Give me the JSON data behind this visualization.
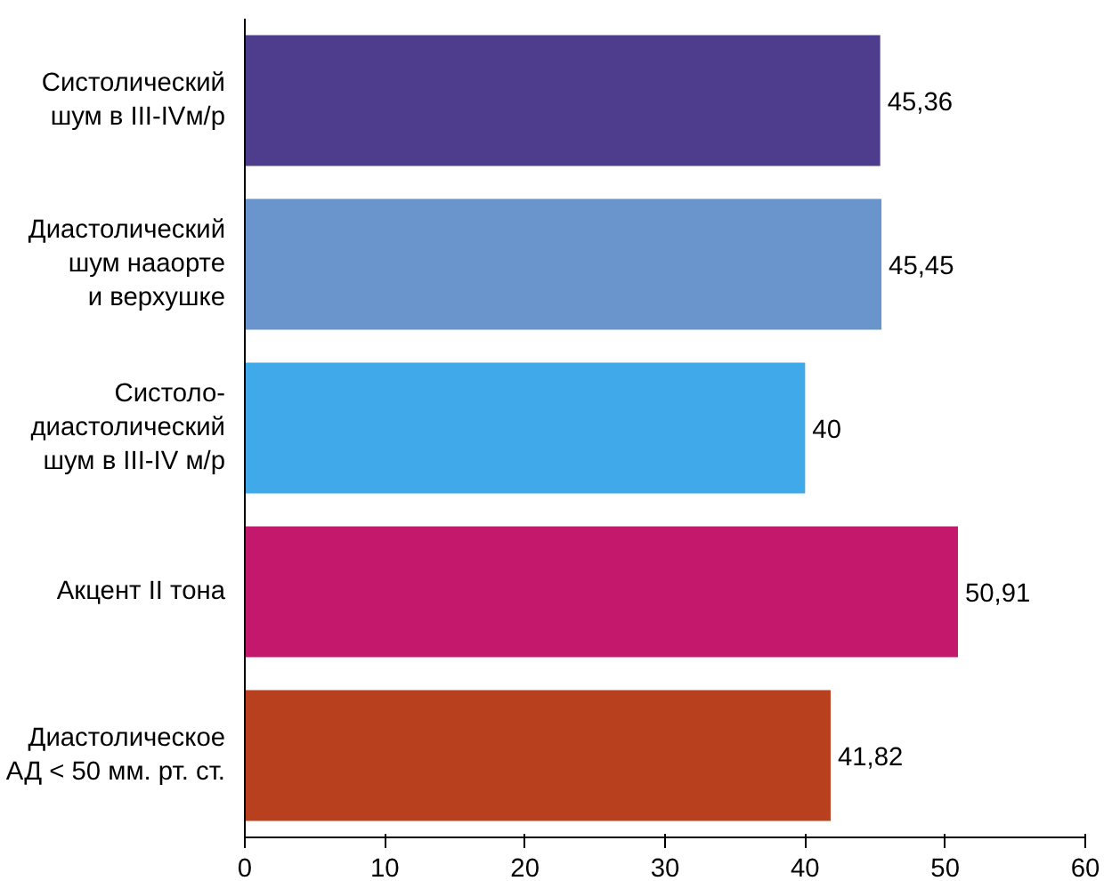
{
  "chart_data": {
    "type": "bar",
    "orientation": "horizontal",
    "categories": [
      "Систолический\nшум в III-IVм/р",
      "Диастолический\nшум нааорте\nи верхушке",
      "Систоло-\nдиастолический\nшум в III-IV м/р",
      "Акцент II тона",
      "Диастолическое\nАД < 50 мм. рт. ст."
    ],
    "values": [
      45.36,
      45.45,
      40,
      50.91,
      41.82
    ],
    "value_labels": [
      "45,36",
      "45,45",
      "40",
      "50,91",
      "41,82"
    ],
    "colors": [
      "#4e3d8c",
      "#6a94cc",
      "#3fa9ea",
      "#c4186c",
      "#b8401f"
    ],
    "xlim": [
      0,
      60
    ],
    "xticks": [
      0,
      10,
      20,
      30,
      40,
      50,
      60
    ],
    "grid": false
  }
}
